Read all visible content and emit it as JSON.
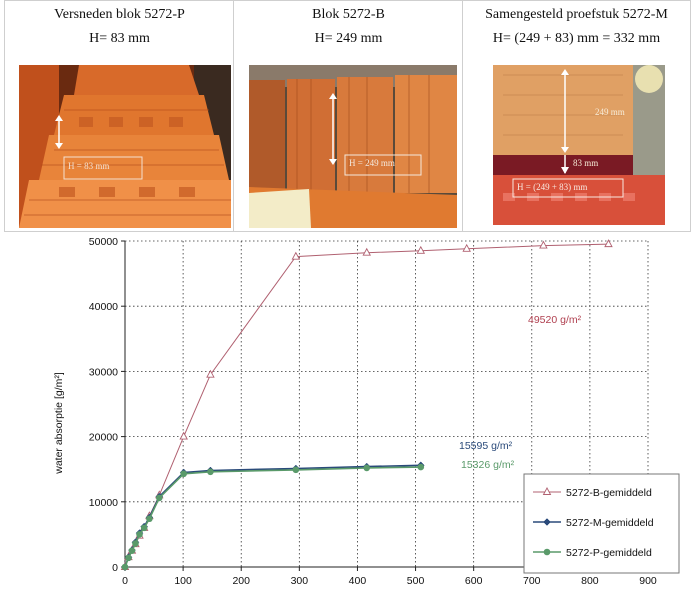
{
  "photos": [
    {
      "title": "Versneden blok 5272-P",
      "height_caption": "H= 83 mm",
      "overlay_label": "H = 83 mm"
    },
    {
      "title": "Blok 5272-B",
      "height_caption": "H= 249 mm",
      "overlay_label": "H = 249 mm"
    },
    {
      "title": "Samengesteld proefstuk 5272-M",
      "height_caption": "H= (249 + 83) mm = 332 mm",
      "overlay_label": "H = (249 + 83) mm",
      "overlay_top": "249 mm",
      "overlay_mid": "83 mm"
    }
  ],
  "chart_data": {
    "type": "line",
    "title": "",
    "xlabel": "",
    "ylabel": "water absorptie [g/m²]",
    "xlim": [
      0,
      900
    ],
    "ylim": [
      0,
      50000
    ],
    "xticks": [
      0,
      100,
      200,
      300,
      400,
      500,
      600,
      700,
      800,
      900
    ],
    "yticks": [
      0,
      10000,
      20000,
      30000,
      40000,
      50000
    ],
    "grid": "dashed",
    "legend_position": "bottom-right",
    "series": [
      {
        "name": "5272-B-gemiddeld",
        "color": "#b06070",
        "marker": "triangle-open",
        "x": [
          0,
          6,
          12,
          18,
          25,
          33,
          42,
          59,
          101,
          147,
          294,
          416,
          509,
          588,
          720,
          832
        ],
        "y": [
          0,
          1500,
          2500,
          3500,
          4800,
          6000,
          7800,
          11000,
          20000,
          29500,
          47600,
          48200,
          48500,
          48800,
          49300,
          49520
        ]
      },
      {
        "name": "5272-M-gemiddeld",
        "color": "#2a4a7a",
        "marker": "diamond",
        "x": [
          0,
          6,
          12,
          18,
          25,
          33,
          42,
          59,
          101,
          147,
          294,
          416,
          509
        ],
        "y": [
          0,
          1500,
          2600,
          3800,
          5200,
          6200,
          7600,
          10800,
          14500,
          14800,
          15100,
          15400,
          15595
        ]
      },
      {
        "name": "5272-P-gemiddeld",
        "color": "#5a9a6a",
        "marker": "circle",
        "x": [
          0,
          6,
          12,
          18,
          25,
          33,
          42,
          59,
          101,
          147,
          294,
          416,
          509
        ],
        "y": [
          0,
          1400,
          2500,
          3600,
          5000,
          6000,
          7400,
          10600,
          14300,
          14600,
          14900,
          15200,
          15326
        ]
      }
    ],
    "annotations": [
      {
        "text": "49520 g/m²",
        "color": "#b04050"
      },
      {
        "text": "15595 g/m²",
        "color": "#2a4a7a"
      },
      {
        "text": "15326 g/m²",
        "color": "#5a9a6a"
      }
    ]
  }
}
